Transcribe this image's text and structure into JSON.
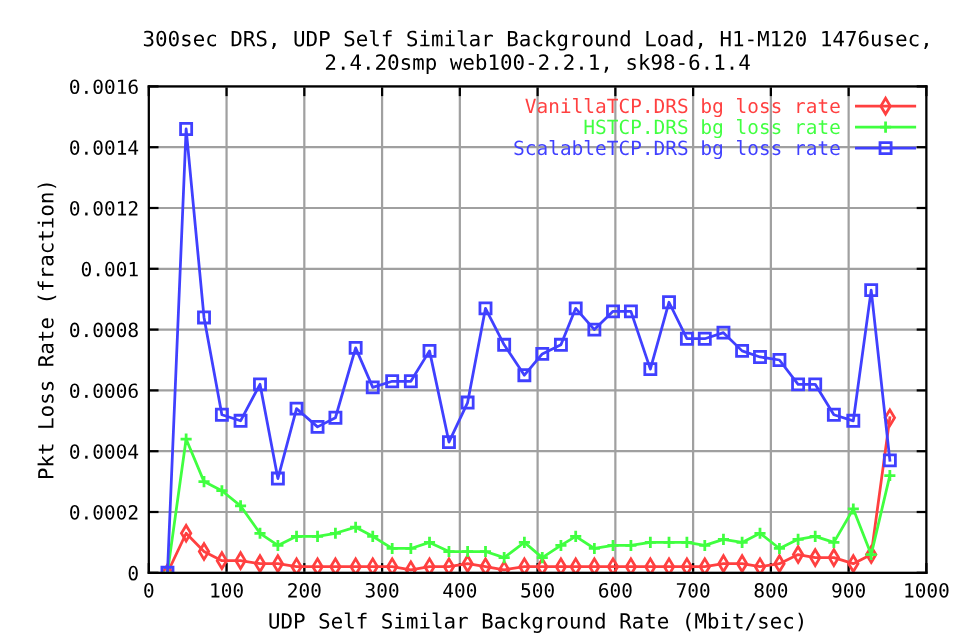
{
  "chart_data": {
    "type": "line",
    "title": "300sec DRS, UDP Self Similar Background Load, H1-M120 1476usec,\n2.4.20smp web100-2.2.1, sk98-6.1.4",
    "xlabel": "UDP Self Similar Background Rate (Mbit/sec)",
    "ylabel": "Pkt Loss Rate (fraction)",
    "x": [
      24,
      48,
      71,
      94,
      118,
      143,
      166,
      190,
      217,
      240,
      266,
      288,
      313,
      337,
      361,
      386,
      410,
      433,
      457,
      483,
      506,
      530,
      549,
      573,
      597,
      620,
      645,
      669,
      692,
      715,
      739,
      763,
      786,
      811,
      835,
      857,
      881,
      906,
      929,
      953
    ],
    "series": [
      {
        "name": "VanillaTCP.DRS bg loss rate",
        "color": "#ff4040",
        "marker": "diamond",
        "values": [
          0,
          0.00013,
          7e-05,
          4e-05,
          4e-05,
          3e-05,
          3e-05,
          2e-05,
          2e-05,
          2e-05,
          2e-05,
          2e-05,
          2e-05,
          1e-05,
          2e-05,
          2e-05,
          3e-05,
          2e-05,
          1e-05,
          2e-05,
          2e-05,
          2e-05,
          2e-05,
          2e-05,
          2e-05,
          2e-05,
          2e-05,
          2e-05,
          2e-05,
          2e-05,
          3e-05,
          3e-05,
          2e-05,
          3e-05,
          6e-05,
          5e-05,
          5e-05,
          3e-05,
          6e-05,
          0.00051
        ]
      },
      {
        "name": "HSTCP.DRS bg loss rate",
        "color": "#40ff40",
        "marker": "cross",
        "values": [
          0,
          0.00044,
          0.0003,
          0.00027,
          0.00022,
          0.00013,
          9e-05,
          0.00012,
          0.00012,
          0.00013,
          0.00015,
          0.00012,
          8e-05,
          8e-05,
          0.0001,
          7e-05,
          7e-05,
          7e-05,
          5e-05,
          0.0001,
          5e-05,
          9e-05,
          0.00012,
          8e-05,
          9e-05,
          9e-05,
          0.0001,
          0.0001,
          0.0001,
          9e-05,
          0.00011,
          0.0001,
          0.00013,
          8e-05,
          0.00011,
          0.00012,
          0.0001,
          0.00021,
          6e-05,
          0.00032
        ]
      },
      {
        "name": "ScalableTCP.DRS bg loss rate",
        "color": "#4040ff",
        "marker": "square",
        "values": [
          0,
          0.00146,
          0.00084,
          0.00052,
          0.0005,
          0.00062,
          0.00031,
          0.00054,
          0.00048,
          0.00051,
          0.00074,
          0.00061,
          0.00063,
          0.00063,
          0.00073,
          0.00043,
          0.00056,
          0.00087,
          0.00075,
          0.00065,
          0.00072,
          0.00075,
          0.00087,
          0.0008,
          0.00086,
          0.00086,
          0.00067,
          0.00089,
          0.00077,
          0.00077,
          0.00079,
          0.00073,
          0.00071,
          0.0007,
          0.00062,
          0.00062,
          0.00052,
          0.0005,
          0.00093,
          0.00037
        ]
      }
    ],
    "xlim": [
      0,
      1000
    ],
    "xticks": [
      0,
      100,
      200,
      300,
      400,
      500,
      600,
      700,
      800,
      900,
      1000
    ],
    "ylim": [
      0,
      0.0016
    ],
    "yticks": [
      0,
      0.0002,
      0.0004,
      0.0006,
      0.0008,
      0.001,
      0.0012,
      0.0014,
      0.0016
    ],
    "grid": true,
    "legend": "top right",
    "line_style": "solid"
  }
}
